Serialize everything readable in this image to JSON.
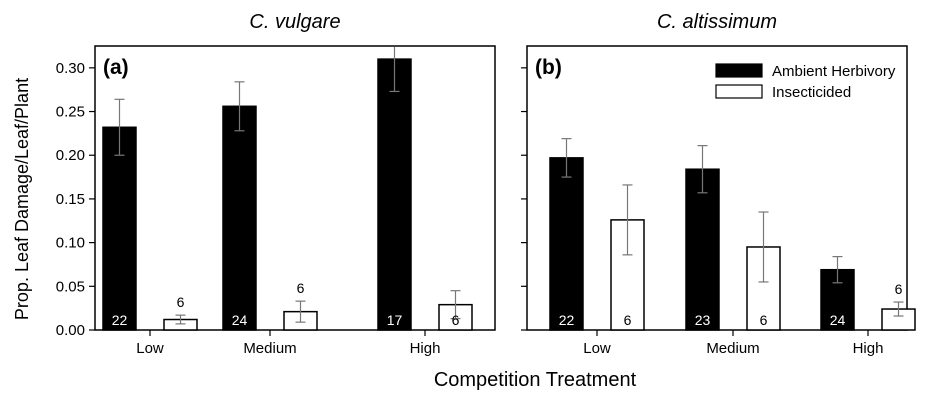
{
  "chart_data": [
    {
      "type": "bar",
      "title": "C. vulgare",
      "panel_label": "(a)",
      "categories": [
        "Low",
        "Medium",
        "High"
      ],
      "ylim": [
        0,
        0.325
      ],
      "yticks": [
        "0.00",
        "0.05",
        "0.10",
        "0.15",
        "0.20",
        "0.25",
        "0.30"
      ],
      "ylabel": "Prop. Leaf Damage/Leaf/Plant",
      "legend": null,
      "series": [
        {
          "name": "Ambient Herbivory",
          "color": "#000000",
          "values": [
            0.232,
            0.256,
            0.31
          ],
          "errors": [
            0.032,
            0.028,
            0.037
          ],
          "n": [
            "22",
            "24",
            "17"
          ]
        },
        {
          "name": "Insecticided",
          "color": "#ffffff",
          "values": [
            0.012,
            0.021,
            0.029
          ],
          "errors": [
            0.005,
            0.012,
            0.016
          ],
          "n": [
            "6",
            "6",
            "6"
          ]
        }
      ]
    },
    {
      "type": "bar",
      "title": "C. altissimum",
      "panel_label": "(b)",
      "categories": [
        "Low",
        "Medium",
        "High"
      ],
      "ylim": [
        0,
        0.325
      ],
      "legend": "top-right",
      "series": [
        {
          "name": "Ambient Herbivory",
          "color": "#000000",
          "values": [
            0.197,
            0.184,
            0.069
          ],
          "errors": [
            0.022,
            0.027,
            0.015
          ],
          "n": [
            "22",
            "23",
            "24"
          ]
        },
        {
          "name": "Insecticided",
          "color": "#ffffff",
          "values": [
            0.126,
            0.095,
            0.024
          ],
          "errors": [
            0.04,
            0.04,
            0.008
          ],
          "n": [
            "6",
            "6",
            "6"
          ]
        }
      ]
    }
  ],
  "xlabel": "Competition Treatment"
}
